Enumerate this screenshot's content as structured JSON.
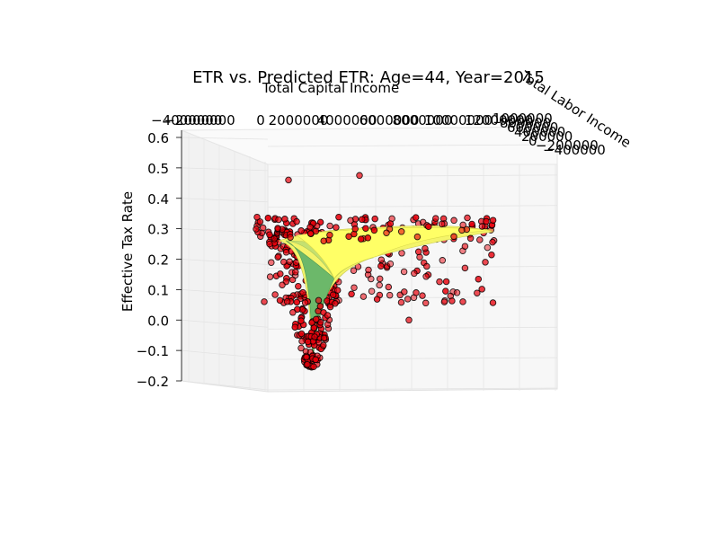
{
  "chart_data": {
    "type": "scatter",
    "projection": "3d",
    "title": "ETR vs. Predicted ETR: Age=44, Year=2015",
    "xlabel": "Total Capital Income",
    "ylabel": "Total Labor Income",
    "zlabel": "Effective Tax Rate",
    "x_tick_labels": [
      "−4000000",
      "−2000000",
      "0",
      "2000000",
      "4000000",
      "6000000",
      "8000000",
      "10000000",
      "12000000"
    ],
    "y_tick_labels": [
      "1000000",
      "800000",
      "600000",
      "400000",
      "200000",
      "0",
      "−200000",
      "−400000"
    ],
    "z_tick_labels": [
      "−0.2",
      "−0.1",
      "0.0",
      "0.1",
      "0.2",
      "0.3",
      "0.4",
      "0.5",
      "0.6"
    ],
    "zlim": [
      -0.2,
      0.6
    ],
    "grid": true,
    "marker_color": "#e8000b",
    "marker_edge_color": "#000000",
    "surface_colormap": "summer",
    "series": [
      {
        "kind": "scatter",
        "note_values": "ETR observations, z-values read from axis; x/y income not individually readable",
        "z": [
          0.46,
          0.45,
          0.34,
          0.33,
          0.32,
          0.31,
          0.3,
          0.29,
          0.28,
          0.27,
          0.26,
          0.25,
          0.24,
          0.23,
          0.22,
          0.21,
          0.2,
          0.19,
          0.18,
          0.17,
          0.16,
          0.15,
          0.14,
          0.13,
          0.12,
          0.11,
          0.1,
          0.09,
          0.08,
          0.07,
          0.06,
          0.05,
          0.04,
          0.03,
          0.02,
          0.01,
          0.0,
          -0.02,
          -0.04,
          -0.06,
          -0.08,
          -0.1,
          -0.12,
          -0.14,
          -0.16
        ]
      },
      {
        "kind": "surface",
        "z_range": [
          -0.16,
          0.29
        ]
      }
    ]
  }
}
